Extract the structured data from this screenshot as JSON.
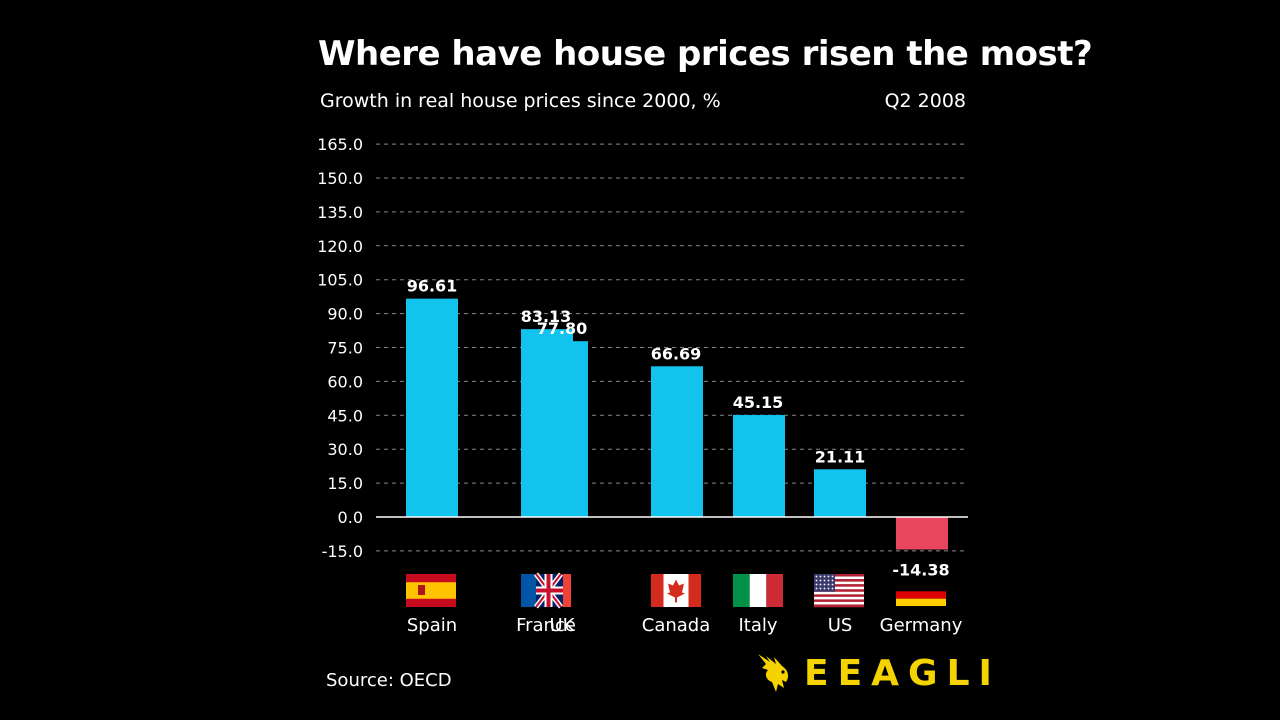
{
  "chart_data": {
    "type": "bar",
    "title": "Where have house prices risen the most?",
    "subtitle": "Growth in real house prices since 2000, %",
    "period": "Q2 2008",
    "categories": [
      "Spain",
      "France",
      "UK",
      "Canada",
      "Italy",
      "US",
      "Germany"
    ],
    "values": [
      96.61,
      83.13,
      77.8,
      66.69,
      45.15,
      21.11,
      -14.38
    ],
    "value_labels": [
      "96.61",
      "83.13",
      "77.80",
      "66.69",
      "45.15",
      "21.11",
      "-14.38"
    ],
    "flags": [
      "spain-flag",
      "france-flag",
      "uk-flag",
      "canada-flag",
      "italy-flag",
      "us-flag",
      "germany-flag"
    ],
    "ylim": [
      -15,
      165
    ],
    "yticks": [
      "-15.0",
      "0.0",
      "15.0",
      "30.0",
      "45.0",
      "60.0",
      "75.0",
      "90.0",
      "105.0",
      "120.0",
      "135.0",
      "150.0",
      "165.0"
    ],
    "grid": true,
    "colors": {
      "positive": "#12c3ee",
      "negative": "#e8465f",
      "grid": "#888888",
      "text": "#ffffff"
    }
  },
  "source": "Source: OECD",
  "logo": {
    "text": "EEAGLI",
    "icon": "eagle-icon",
    "color": "#f5d300"
  }
}
